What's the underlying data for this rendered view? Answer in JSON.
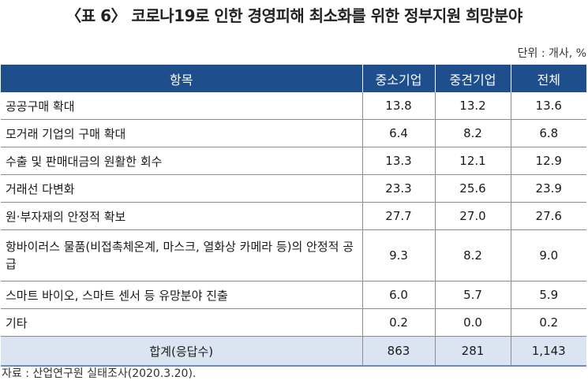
{
  "title": "〈표 6〉 코로나19로 인한 경영피해 최소화를 위한 정부지원 희망분야",
  "unit": "단위 : 개사, %",
  "table": {
    "headers": [
      "항목",
      "중소기업",
      "중견기업",
      "전체"
    ],
    "rows": [
      {
        "item": "공공구매 확대",
        "sme": "13.8",
        "mid": "13.2",
        "total": "13.6"
      },
      {
        "item": "모거래 기업의 구매 확대",
        "sme": "6.4",
        "mid": "8.2",
        "total": "6.8"
      },
      {
        "item": "수출 및 판매대금의 원활한 회수",
        "sme": "13.3",
        "mid": "12.1",
        "total": "12.9"
      },
      {
        "item": "거래선 다변화",
        "sme": "23.3",
        "mid": "25.6",
        "total": "23.9"
      },
      {
        "item": "원·부자재의 안정적 확보",
        "sme": "27.7",
        "mid": "27.0",
        "total": "27.6"
      },
      {
        "item": "항바이러스 물품(비접촉체온계, 마스크, 열화상 카메라 등)의 안정적 공급",
        "sme": "9.3",
        "mid": "8.2",
        "total": "9.0"
      },
      {
        "item": "스마트 바이오, 스마트 센서 등 유망분야 진출",
        "sme": "6.0",
        "mid": "5.7",
        "total": "5.9"
      },
      {
        "item": "기타",
        "sme": "0.2",
        "mid": "0.0",
        "total": "0.2"
      }
    ],
    "footer": {
      "item": "합계(응답수)",
      "sme": "863",
      "mid": "281",
      "total": "1,143"
    }
  },
  "source": "자료 : 산업연구원 실태조사(2020.3.20).",
  "colors": {
    "header_bg": "#1f4e8c",
    "footer_bg": "#dbe5f1"
  }
}
